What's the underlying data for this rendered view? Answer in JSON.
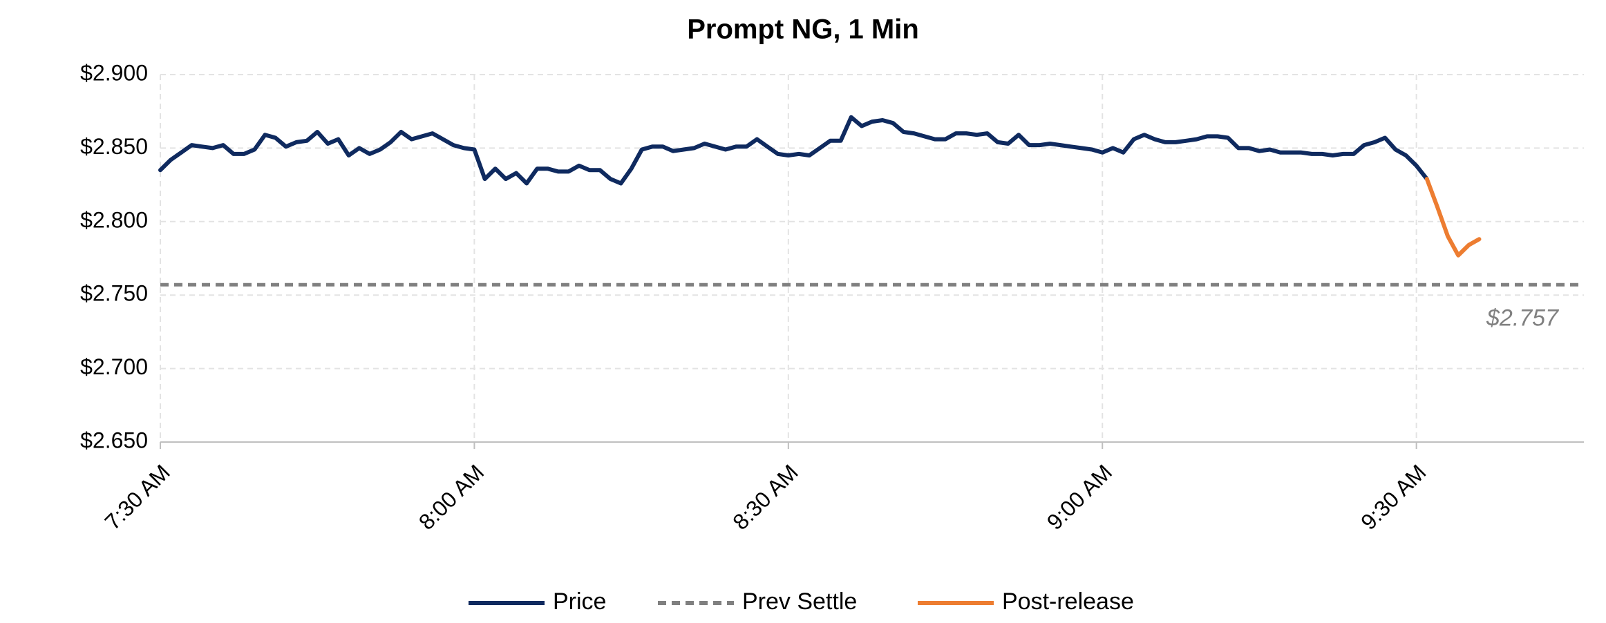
{
  "chart_data": {
    "type": "line",
    "title": "Prompt NG, 1 Min",
    "xlim": [
      450,
      586
    ],
    "xticks": [
      {
        "value": 450,
        "label": "7:30 AM"
      },
      {
        "value": 480,
        "label": "8:00 AM"
      },
      {
        "value": 510,
        "label": "8:30 AM"
      },
      {
        "value": 540,
        "label": "9:00 AM"
      },
      {
        "value": 570,
        "label": "9:30 AM"
      }
    ],
    "ylim": [
      2.65,
      2.9
    ],
    "yticks": [
      {
        "value": 2.65,
        "label": "$2.650"
      },
      {
        "value": 2.7,
        "label": "$2.700"
      },
      {
        "value": 2.75,
        "label": "$2.750"
      },
      {
        "value": 2.8,
        "label": "$2.800"
      },
      {
        "value": 2.85,
        "label": "$2.850"
      },
      {
        "value": 2.9,
        "label": "$2.900"
      }
    ],
    "grid": true,
    "series": [
      {
        "name": "Price",
        "color": "#0f2a5f",
        "x": [
          450,
          451,
          452,
          453,
          454,
          455,
          456,
          457,
          458,
          459,
          460,
          461,
          462,
          463,
          464,
          465,
          466,
          467,
          468,
          469,
          470,
          471,
          472,
          473,
          474,
          475,
          476,
          477,
          478,
          479,
          480,
          481,
          482,
          483,
          484,
          485,
          486,
          487,
          488,
          489,
          490,
          491,
          492,
          493,
          494,
          495,
          496,
          497,
          498,
          499,
          500,
          501,
          502,
          503,
          504,
          505,
          506,
          507,
          508,
          509,
          510,
          511,
          512,
          513,
          514,
          515,
          516,
          517,
          518,
          519,
          520,
          521,
          522,
          523,
          524,
          525,
          526,
          527,
          528,
          529,
          530,
          531,
          532,
          533,
          534,
          535,
          536,
          537,
          538,
          539,
          540,
          541,
          542,
          543,
          544,
          545,
          546,
          547,
          548,
          549,
          550,
          551,
          552,
          553,
          554,
          555,
          556,
          557,
          558,
          559,
          560,
          561,
          562,
          563,
          564,
          565,
          566,
          567,
          568,
          569,
          570,
          571
        ],
        "values": [
          2.835,
          2.842,
          2.847,
          2.852,
          2.851,
          2.85,
          2.852,
          2.846,
          2.846,
          2.849,
          2.859,
          2.857,
          2.851,
          2.854,
          2.855,
          2.861,
          2.853,
          2.856,
          2.845,
          2.85,
          2.846,
          2.849,
          2.854,
          2.861,
          2.856,
          2.858,
          2.86,
          2.856,
          2.852,
          2.85,
          2.849,
          2.829,
          2.836,
          2.829,
          2.833,
          2.826,
          2.836,
          2.836,
          2.834,
          2.834,
          2.838,
          2.835,
          2.835,
          2.829,
          2.826,
          2.836,
          2.849,
          2.851,
          2.851,
          2.848,
          2.849,
          2.85,
          2.853,
          2.851,
          2.849,
          2.851,
          2.851,
          2.856,
          2.851,
          2.846,
          2.845,
          2.846,
          2.845,
          2.85,
          2.855,
          2.855,
          2.871,
          2.865,
          2.868,
          2.869,
          2.867,
          2.861,
          2.86,
          2.858,
          2.856,
          2.856,
          2.86,
          2.86,
          2.859,
          2.86,
          2.854,
          2.853,
          2.859,
          2.852,
          2.852,
          2.853,
          2.852,
          2.851,
          2.85,
          2.849,
          2.847,
          2.85,
          2.847,
          2.856,
          2.859,
          2.856,
          2.854,
          2.854,
          2.855,
          2.856,
          2.858,
          2.858,
          2.857,
          2.85,
          2.85,
          2.848,
          2.849,
          2.847,
          2.847,
          2.847,
          2.846,
          2.846,
          2.845,
          2.846,
          2.846,
          2.852,
          2.854,
          2.857,
          2.849,
          2.845,
          2.838,
          2.829
        ]
      },
      {
        "name": "Post-release",
        "color": "#ed7d31",
        "x": [
          571,
          572,
          573,
          574,
          575,
          576
        ],
        "values": [
          2.829,
          2.81,
          2.79,
          2.777,
          2.784,
          2.788
        ]
      }
    ],
    "reference_line": {
      "name": "Prev Settle",
      "value": 2.757,
      "label": "$2.757",
      "color": "#808080"
    }
  }
}
